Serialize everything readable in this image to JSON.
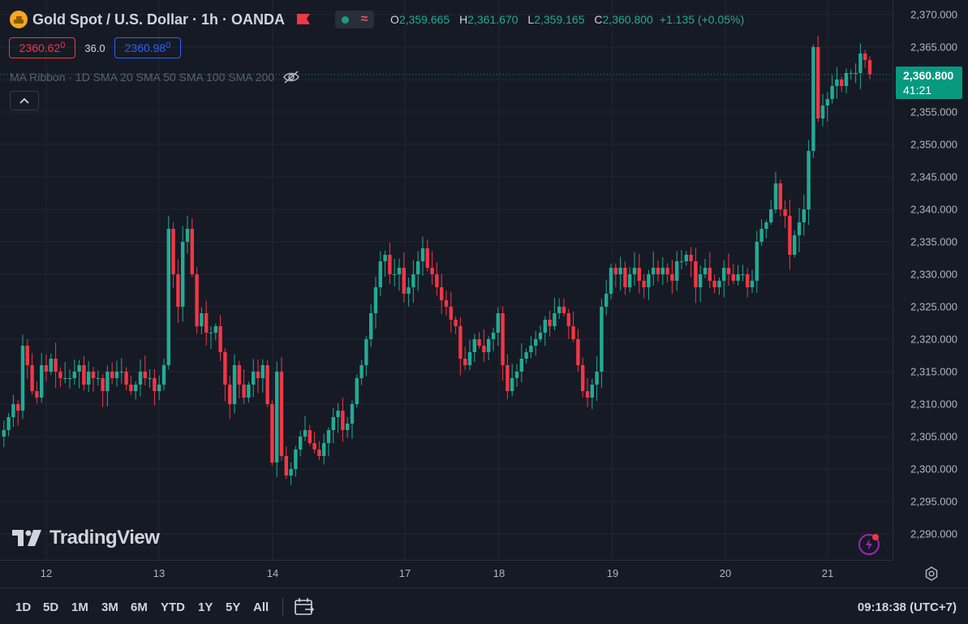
{
  "header": {
    "symbol_title": "Gold Spot / U.S. Dollar · 1h · OANDA",
    "ohlc": {
      "o_label": "O",
      "o_value": "2,359.665",
      "h_label": "H",
      "h_value": "2,361.670",
      "l_label": "L",
      "l_value": "2,359.165",
      "c_label": "C",
      "c_value": "2,360.800",
      "change": "+1.135 (+0.05%)"
    }
  },
  "trade": {
    "sell_main": "2360.62",
    "sell_small": "0",
    "spread": "36.0",
    "buy_main": "2360.98",
    "buy_small": "0"
  },
  "indicator": {
    "label": "MA Ribbon · 1D SMA 20 SMA 50 SMA 100 SMA 200"
  },
  "price_label": {
    "price": "2,360.800",
    "countdown": "41:21"
  },
  "logo": {
    "text": "TradingView"
  },
  "bottom": {
    "ranges": [
      "1D",
      "5D",
      "1M",
      "3M",
      "6M",
      "YTD",
      "1Y",
      "5Y",
      "All"
    ],
    "clock": "09:18:38 (UTC+7)"
  },
  "colors": {
    "up": "#22ab94",
    "down": "#f23645",
    "accent": "#2962ff",
    "background": "#161a25"
  },
  "icons": [
    "gold-symbol-icon",
    "flag-icon",
    "status-dot-icon",
    "wave-icon",
    "eye-slash-icon",
    "chevron-up-icon",
    "calendar-icon",
    "settings-icon",
    "lightning-icon"
  ],
  "chart_data": {
    "type": "candlestick",
    "interval": "1h",
    "y_ticks": [
      "2,370.000",
      "2,365.000",
      "2,360.000",
      "2,355.000",
      "2,350.000",
      "2,345.000",
      "2,340.000",
      "2,335.000",
      "2,330.000",
      "2,325.000",
      "2,320.000",
      "2,315.000",
      "2,310.000",
      "2,305.000",
      "2,300.000",
      "2,295.000",
      "2,290.000"
    ],
    "ylim": [
      2287,
      2372
    ],
    "x_ticks": [
      "12",
      "13",
      "14",
      "17",
      "18",
      "19",
      "20",
      "21"
    ],
    "last_price": 2360.8,
    "grid": true,
    "closes": [
      2306,
      2308,
      2310,
      2309,
      2319,
      2316,
      2312,
      2311,
      2316,
      2315,
      2317,
      2315,
      2314,
      2314,
      2314,
      2315,
      2316,
      2313,
      2315,
      2314,
      2314,
      2312,
      2315,
      2314,
      2315,
      2315,
      2313,
      2312,
      2313,
      2315,
      2314,
      2314,
      2312,
      2313,
      2316,
      2337,
      2330,
      2325,
      2335,
      2337,
      2330,
      2322,
      2324,
      2321,
      2321,
      2322,
      2318,
      2313,
      2310,
      2316,
      2313,
      2311,
      2313,
      2315,
      2314,
      2316,
      2310,
      2301,
      2315,
      2302,
      2299,
      2300,
      2303,
      2305,
      2306,
      2304,
      2303,
      2302,
      2304,
      2306,
      2308,
      2309,
      2306,
      2307,
      2310,
      2314,
      2316,
      2320,
      2324,
      2328,
      2332,
      2333,
      2330,
      2330,
      2331,
      2327,
      2328,
      2330,
      2332,
      2334,
      2331,
      2330,
      2328,
      2326,
      2325,
      2323,
      2322,
      2317,
      2316,
      2318,
      2320,
      2319,
      2318,
      2320,
      2321,
      2324,
      2316,
      2312,
      2314,
      2315,
      2317,
      2318,
      2319,
      2320,
      2321,
      2323,
      2322,
      2324,
      2325,
      2324,
      2322,
      2320,
      2316,
      2312,
      2311,
      2313,
      2315,
      2325,
      2327,
      2331,
      2330,
      2331,
      2328,
      2330,
      2331,
      2329,
      2328,
      2330,
      2331,
      2330,
      2331,
      2330,
      2329,
      2332,
      2332,
      2333,
      2332,
      2328,
      2330,
      2331,
      2329,
      2328,
      2329,
      2331,
      2330,
      2329,
      2330,
      2330,
      2328,
      2329,
      2335,
      2337,
      2338,
      2340,
      2344,
      2340,
      2339,
      2333,
      2336,
      2338,
      2340,
      2349,
      2365,
      2354,
      2356,
      2357,
      2359,
      2360,
      2359,
      2361,
      2361,
      2361,
      2364,
      2363,
      2360.8
    ]
  }
}
